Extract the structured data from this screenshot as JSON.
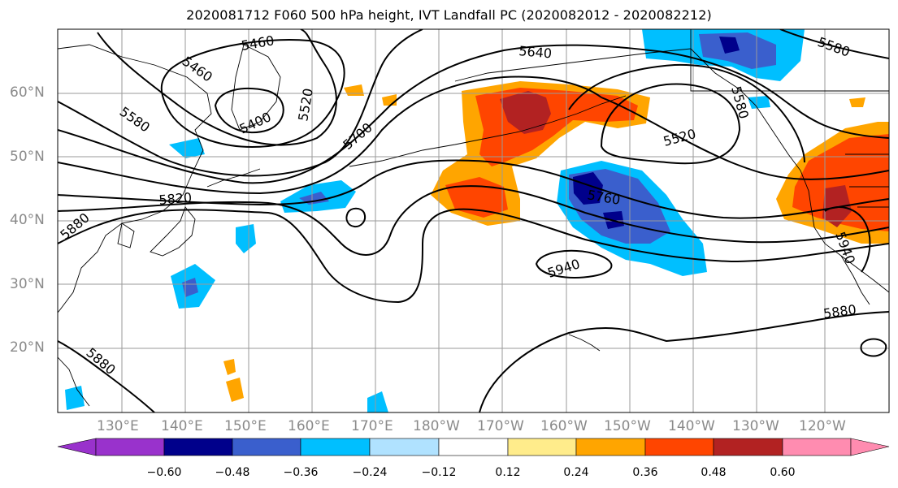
{
  "title": "2020081712 F060 500 hPa height, IVT Landfall PC (2020082012 - 2020082212)",
  "map": {
    "lat_labels": [
      "60°N",
      "50°N",
      "40°N",
      "30°N",
      "20°N"
    ],
    "lon_labels": [
      "130°E",
      "140°E",
      "150°E",
      "160°E",
      "170°E",
      "180°W",
      "170°W",
      "160°W",
      "150°W",
      "140°W",
      "130°W",
      "120°W"
    ],
    "contour_labels": [
      "5460",
      "5460",
      "5400",
      "5520",
      "5580",
      "5700",
      "5640",
      "5580",
      "5580",
      "5520",
      "5760",
      "5820",
      "5880",
      "5940",
      "5940",
      "5880",
      "5880"
    ],
    "colors": {
      "grid": "#9a9a9a",
      "coast": "#000000",
      "contour": "#000000"
    }
  },
  "colorbar": {
    "colors": [
      "#9932CC",
      "#00008B",
      "#3A5FCD",
      "#00BFFF",
      "#B0E2FF",
      "#FFFFFF",
      "#FFEC8B",
      "#FFA500",
      "#FF4500",
      "#B22222",
      "#FF8CB0"
    ],
    "tick_labels": [
      "−0.60",
      "−0.48",
      "−0.36",
      "−0.24",
      "−0.12",
      "0.12",
      "0.24",
      "0.36",
      "0.48",
      "0.60"
    ]
  }
}
